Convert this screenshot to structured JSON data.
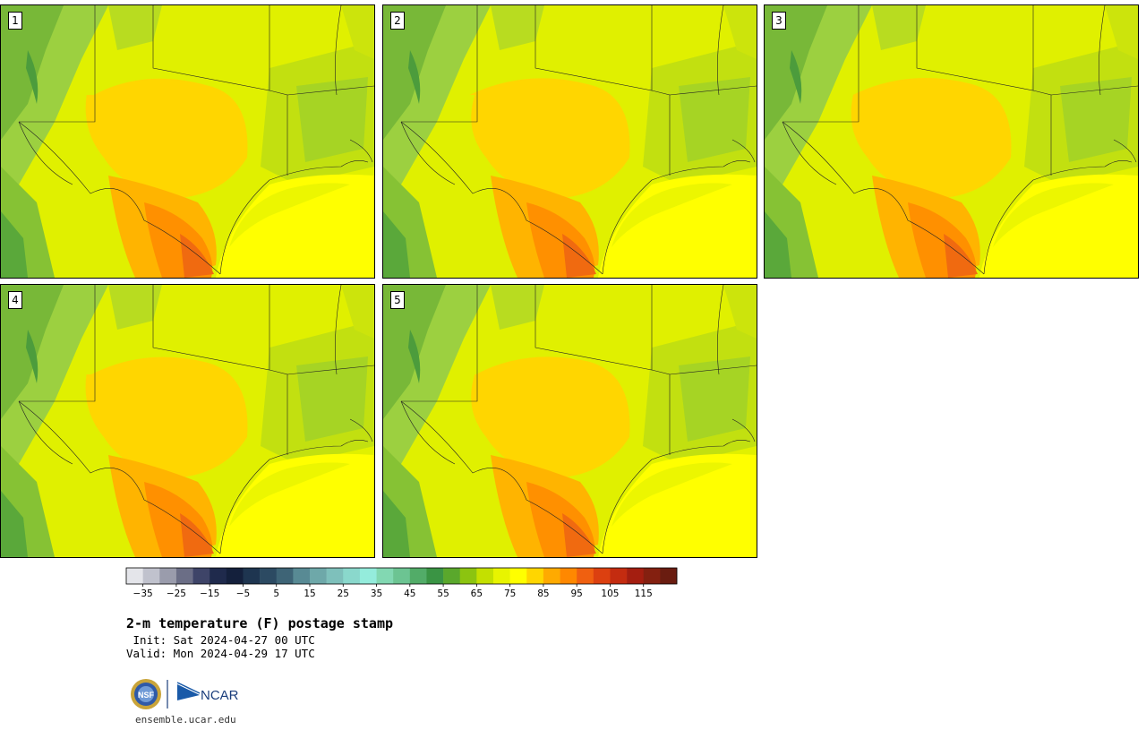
{
  "panels": [
    {
      "label": "1"
    },
    {
      "label": "2"
    },
    {
      "label": "3"
    },
    {
      "label": "4"
    },
    {
      "label": "5"
    }
  ],
  "colorbar": {
    "ticks": [
      "−35",
      "−25",
      "−15",
      "−5",
      "5",
      "15",
      "25",
      "35",
      "45",
      "55",
      "65",
      "75",
      "85",
      "95",
      "105",
      "115"
    ],
    "colors": [
      "#e4e5ea",
      "#c0c2cd",
      "#9a9cac",
      "#6b6e86",
      "#3e4468",
      "#1f2a4c",
      "#14203c",
      "#1e3550",
      "#2c4a62",
      "#3e6476",
      "#588a94",
      "#6ea8a9",
      "#7ec0bb",
      "#8ad8cc",
      "#94ecdc",
      "#82d8b2",
      "#6cc492",
      "#52ac68",
      "#3a9444",
      "#5aa82c",
      "#8cc410",
      "#c4e000",
      "#e8f400",
      "#ffff00",
      "#ffd600",
      "#ffaa00",
      "#ff8800",
      "#f06010",
      "#dc4010",
      "#c42c10",
      "#a41e10",
      "#842010",
      "#6a1c10"
    ]
  },
  "title": "2-m temperature (F) postage stamp",
  "init_line": " Init: Sat 2024-04-27 00 UTC",
  "valid_line": "Valid: Mon 2024-04-29 17 UTC",
  "logo": {
    "nsf": "NSF",
    "ncar": "NCAR"
  },
  "url": "ensemble.ucar.edu"
}
